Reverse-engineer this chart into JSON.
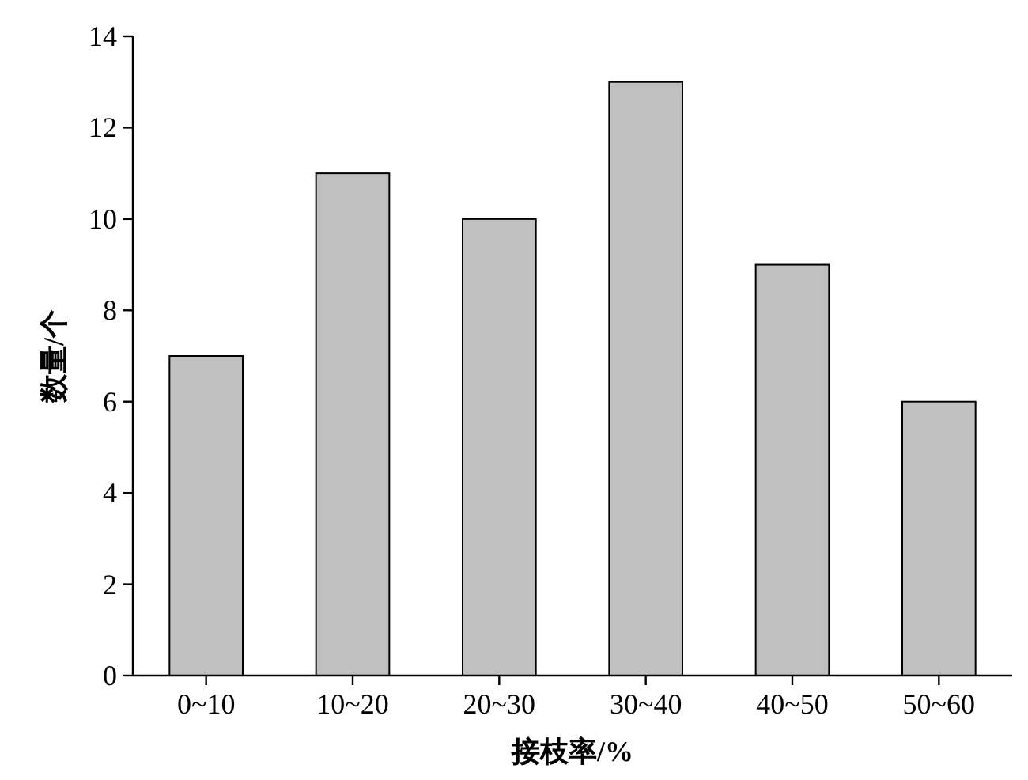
{
  "chart_data": {
    "type": "bar",
    "categories": [
      "0~10",
      "10~20",
      "20~30",
      "30~40",
      "40~50",
      "50~60"
    ],
    "values": [
      7,
      11,
      10,
      13,
      9,
      6
    ],
    "color": "#c0c0c0",
    "xlabel": "接枝率/%",
    "ylabel": "数量/个",
    "ylim": [
      0,
      14
    ],
    "yticks": [
      0,
      2,
      4,
      6,
      8,
      10,
      12,
      14
    ]
  }
}
